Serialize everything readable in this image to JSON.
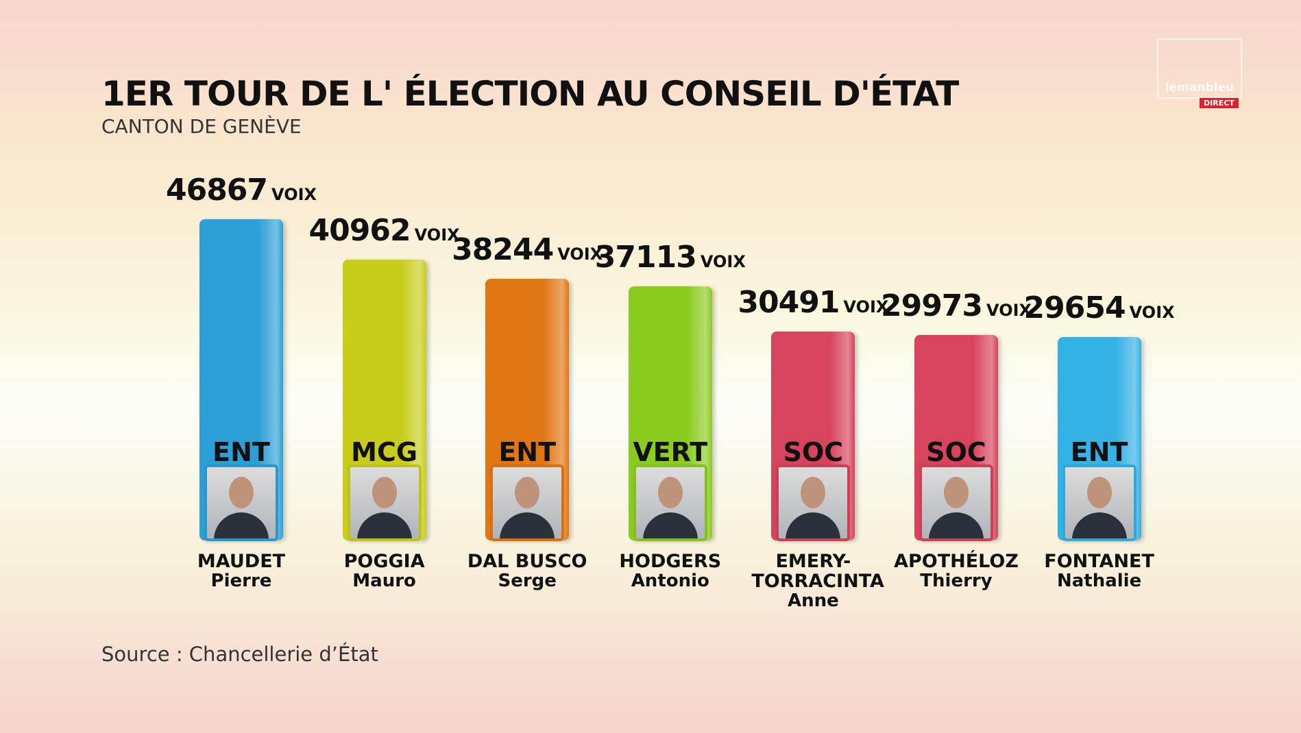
{
  "chart_data": {
    "type": "bar",
    "title": "1ER TOUR DE L' ÉLECTION AU CONSEIL D'ÉTAT",
    "subtitle": "CANTON DE GENÈVE",
    "categories": [
      "MAUDET",
      "POGGIA",
      "DAL BUSCO",
      "HODGERS",
      "EMERY-TORRACINTA",
      "APOTHÉLOZ",
      "FONTANET"
    ],
    "first_names": [
      "Pierre",
      "Mauro",
      "Serge",
      "Antonio",
      "Anne",
      "Thierry",
      "Nathalie"
    ],
    "parties": [
      "ENT",
      "MCG",
      "ENT",
      "VERT",
      "SOC",
      "SOC",
      "ENT"
    ],
    "values": [
      46867,
      40962,
      38244,
      37113,
      30491,
      29973,
      29654
    ],
    "value_unit": "VOIX",
    "colors": [
      "#2c9fd6",
      "#c8cd1c",
      "#e07614",
      "#8bcb1f",
      "#d6435c",
      "#d6435c",
      "#34b1e5"
    ],
    "ylim": [
      0,
      50000
    ],
    "source": "Source : Chancellerie d’État",
    "logo": "lemanbleu",
    "badge": "DIRECT"
  }
}
